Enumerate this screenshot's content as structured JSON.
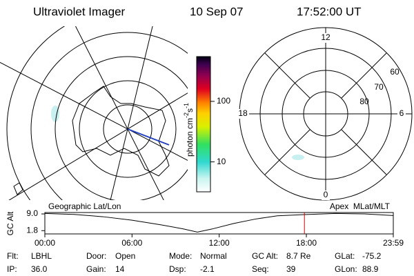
{
  "header": {
    "instrument": "Ultraviolet Imager",
    "date": "10 Sep 07",
    "time": "17:52:00 UT"
  },
  "left_panel": {
    "label": "Geographic Lat/Lon"
  },
  "right_panel": {
    "label": "Apex  MLat/MLT",
    "mlt_labels": {
      "top": "12",
      "left": "18",
      "right": "6",
      "bottom": "0"
    },
    "mlat_labels": [
      "60",
      "70",
      "80"
    ]
  },
  "colorbar": {
    "label": {
      "base": "photon cm",
      "exp1": "-2",
      "unit2": "s",
      "exp2": "-1"
    },
    "scale": "log",
    "ylim": [
      3.2,
      550
    ],
    "yticks": [
      10,
      100
    ]
  },
  "timeline": {
    "ylabel": "GC Alt",
    "yticks": [
      {
        "value": 9.0,
        "label": "9.0"
      },
      {
        "value": 1.8,
        "label": "1.8"
      }
    ],
    "ylim": [
      0.4,
      9.6
    ],
    "xlim": [
      "00:00",
      "23:59"
    ],
    "xticks": [
      "00:00",
      "06:00",
      "12:00",
      "18:00",
      "23:59"
    ],
    "x": [
      "00:00",
      "02:00",
      "04:00",
      "06:00",
      "08:00",
      "09:30",
      "10:30",
      "11:30",
      "13:00",
      "14:30",
      "16:00",
      "17:52",
      "20:00",
      "22:00",
      "23:59"
    ],
    "values": [
      9.2,
      8.8,
      7.8,
      6.3,
      4.3,
      2.6,
      1.2,
      2.5,
      4.9,
      6.8,
      8.2,
      8.7,
      9.2,
      9.0,
      8.3
    ],
    "marker": "17:52",
    "marker_color": "#cc0000"
  },
  "info": {
    "rows": [
      [
        [
          "Flt:",
          "LBHL"
        ],
        [
          "Door:",
          "Open"
        ],
        [
          "Mode:",
          "Normal"
        ],
        [
          "GC Alt:",
          "8.7 Re"
        ],
        [
          "GLat:",
          "-75.2"
        ]
      ],
      [
        [
          "IP:",
          "36.0"
        ],
        [
          "Gain:",
          "14"
        ],
        [
          "Dsp:",
          "-2.1"
        ],
        [
          "Seq:",
          "39"
        ],
        [
          "GLon:",
          "88.9"
        ]
      ]
    ]
  }
}
